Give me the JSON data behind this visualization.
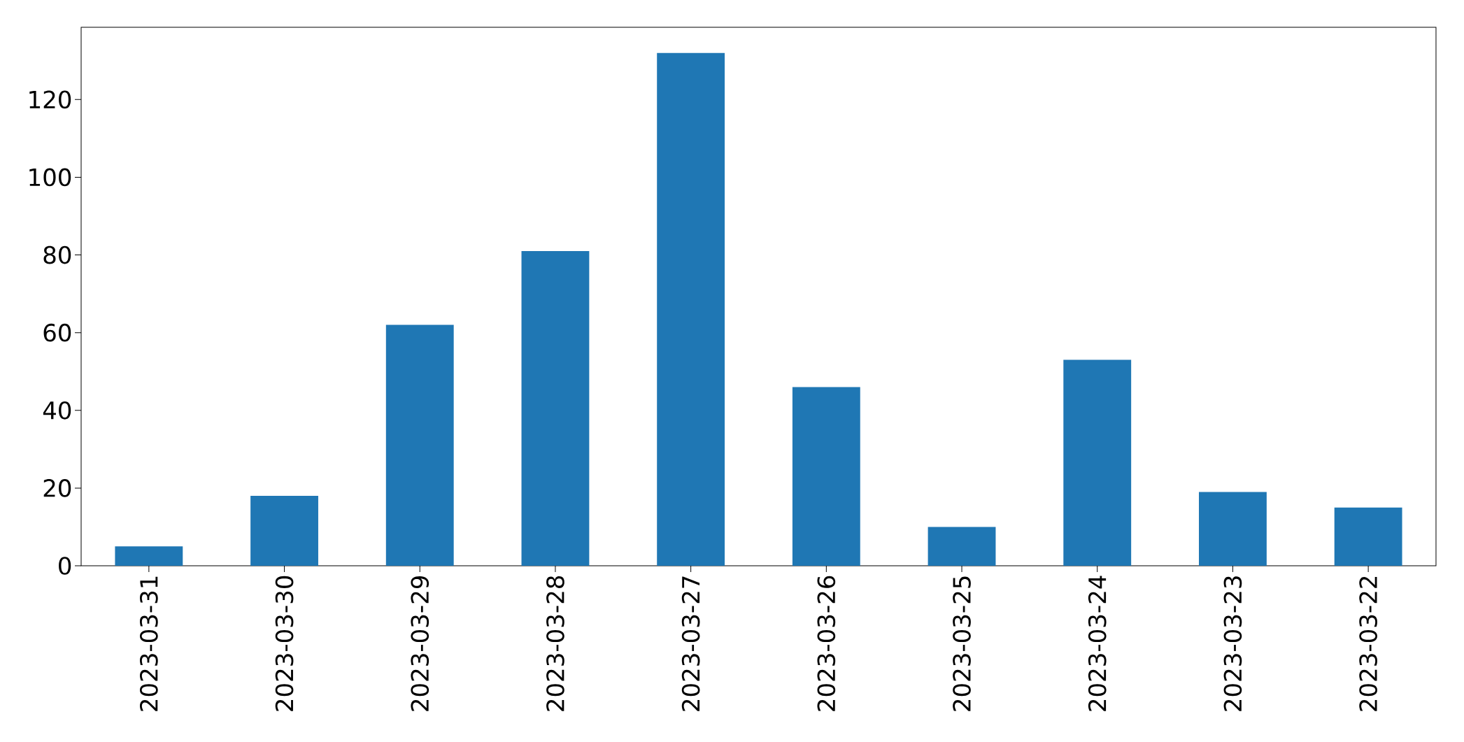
{
  "chart_data": {
    "type": "bar",
    "categories": [
      "2023-03-31",
      "2023-03-30",
      "2023-03-29",
      "2023-03-28",
      "2023-03-27",
      "2023-03-26",
      "2023-03-25",
      "2023-03-24",
      "2023-03-23",
      "2023-03-22"
    ],
    "values": [
      5,
      18,
      62,
      81,
      132,
      46,
      10,
      53,
      19,
      15
    ],
    "color": "#1f77b4",
    "ylim": [
      0,
      138.6
    ],
    "yticks": [
      0,
      20,
      40,
      60,
      80,
      100,
      120
    ],
    "grid": false
  }
}
